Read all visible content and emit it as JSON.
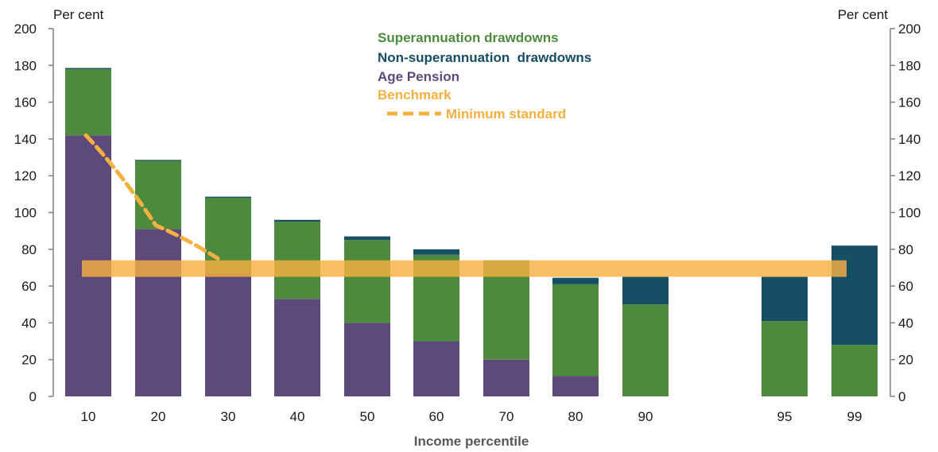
{
  "chart_data": {
    "type": "bar",
    "stacked": true,
    "xlabel": "Income percentile",
    "ylabel_left": "Per cent",
    "ylabel_right": "Per cent",
    "ylim": [
      0,
      200
    ],
    "yticks": [
      "0",
      "20",
      "40",
      "60",
      "80",
      "100",
      "120",
      "140",
      "160",
      "180",
      "200"
    ],
    "categories": [
      "10",
      "20",
      "30",
      "40",
      "50",
      "60",
      "70",
      "80",
      "90",
      "95",
      "99"
    ],
    "series": [
      {
        "name": "Age Pension",
        "color": "#5e4a7a",
        "values": [
          142,
          91,
          67,
          53,
          40,
          30,
          20,
          11,
          0,
          0,
          0
        ]
      },
      {
        "name": "Superannuation drawdowns",
        "color": "#4e8a3e",
        "values": [
          36,
          37,
          41,
          42,
          45,
          47,
          54,
          50,
          50,
          41,
          28
        ]
      },
      {
        "name": "Non-superannuation drawdowns",
        "color": "#164e63",
        "values": [
          0.6,
          0.6,
          0.6,
          1,
          2,
          3,
          0,
          3.5,
          15,
          24,
          54
        ]
      }
    ],
    "benchmark": {
      "name": "Benchmark",
      "color": "#f5b041",
      "range": [
        65,
        74
      ]
    },
    "minimum_standard": {
      "name": "Minimum standard",
      "color": "#f5b041",
      "x": [
        "10",
        "20",
        "30"
      ],
      "values": [
        142,
        93,
        75
      ]
    },
    "legend": [
      {
        "label": "Superannuation drawdowns",
        "color": "#4e8a3e"
      },
      {
        "label": "Non-superannuation  drawdowns",
        "color": "#164e63"
      },
      {
        "label": "Age Pension",
        "color": "#5e4a7a"
      },
      {
        "label": "Benchmark",
        "color": "#f5b041"
      },
      {
        "label": "Minimum standard",
        "color": "#f5b041"
      }
    ],
    "legend_position": "top-center",
    "grid": false
  }
}
